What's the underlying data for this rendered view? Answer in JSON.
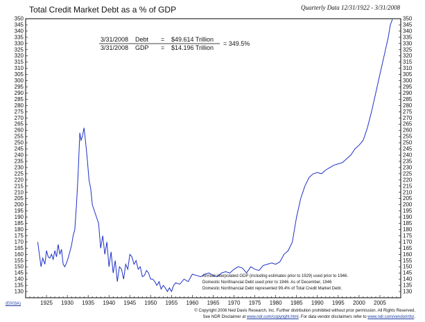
{
  "header": {
    "title": "Total Credit Market Debt as a % of GDP",
    "quarterly": "Quarterly Data 12/31/1922 - 3/31/2008"
  },
  "box": {
    "row1_date": "3/31/2008",
    "row1_label": "Debt",
    "row1_eq": "=",
    "row1_value": "$49.614 Trillion",
    "row2_date": "3/31/2008",
    "row2_label": "GDP",
    "row2_eq": "=",
    "row2_value": "$14.196 Trillion",
    "result": "= 349.5%"
  },
  "annotations": [
    "Annual interpolated GDP (including estimates prior to 1929) used prior to 1946.",
    "Domestic Nonfinancial Debt used prior to 1946. As of December, 1946",
    "Domestic Nonfinancial Debt represented 99.4% of Total Credit Market Debt."
  ],
  "footer": {
    "code": "(E003A)",
    "line1": "© Copyright 2008 Ned Davis Research, Inc. Further distribution prohibited without prior permission. All Rights Reserved.",
    "line2_pre": "See NDR Disclaimer at ",
    "line2_link1": "www.ndr.com/copyright.html",
    "line2_mid": ". For data vendor disclaimers refer to ",
    "line2_link2": "www.ndr.com/vendorinfo/",
    "line2_post": "."
  },
  "colors": {
    "line": "#1c2fc4",
    "frame": "#000000",
    "text": "#111111"
  },
  "chart_data": {
    "type": "line",
    "title": "Total Credit Market Debt as a % of GDP",
    "xlabel": "",
    "ylabel": "",
    "xlim": [
      1920,
      2010
    ],
    "ylim": [
      125,
      350
    ],
    "x_ticks": [
      1925,
      1930,
      1935,
      1940,
      1945,
      1950,
      1955,
      1960,
      1965,
      1970,
      1975,
      1980,
      1985,
      1990,
      1995,
      2000,
      2005
    ],
    "y_ticks": [
      130,
      135,
      140,
      145,
      150,
      155,
      160,
      165,
      170,
      175,
      180,
      185,
      190,
      195,
      200,
      205,
      210,
      215,
      220,
      225,
      230,
      235,
      240,
      245,
      250,
      255,
      260,
      265,
      270,
      275,
      280,
      285,
      290,
      295,
      300,
      305,
      310,
      315,
      320,
      325,
      330,
      335,
      340,
      345,
      350
    ],
    "grid": false,
    "y_axis_both_sides": true,
    "series": [
      {
        "x": [
          1922.9,
          1923.3,
          1923.7,
          1924.1,
          1924.6,
          1925.0,
          1925.4,
          1925.8,
          1926.2,
          1926.6,
          1927.0,
          1927.4,
          1927.8,
          1928.2,
          1928.6,
          1929.0,
          1929.4,
          1929.8,
          1930.2,
          1930.6,
          1931.0,
          1931.4,
          1931.8,
          1932.2,
          1932.6,
          1933.0,
          1933.3,
          1933.6,
          1934.0,
          1934.4,
          1934.8,
          1935.2,
          1935.6,
          1936.0,
          1936.5,
          1937.0,
          1937.5,
          1938.0,
          1938.5,
          1939.0,
          1939.5,
          1940.0,
          1940.5,
          1941.0,
          1941.5,
          1942.0,
          1942.5,
          1943.0,
          1943.5,
          1944.0,
          1944.5,
          1945.0,
          1945.5,
          1946.0,
          1946.5,
          1947.0,
          1947.5,
          1948.0,
          1948.5,
          1949.0,
          1949.5,
          1950.0,
          1950.5,
          1951.0,
          1951.5,
          1952.0,
          1952.5,
          1953.0,
          1953.5,
          1954.0,
          1954.5,
          1955.0,
          1955.5,
          1956.0,
          1957.0,
          1958.0,
          1959.0,
          1960.0,
          1961.0,
          1962.0,
          1963.0,
          1964.0,
          1965.0,
          1966.0,
          1967.0,
          1968.0,
          1969.0,
          1970.0,
          1971.0,
          1972.0,
          1973.0,
          1974.0,
          1975.0,
          1976.0,
          1977.0,
          1978.0,
          1979.0,
          1980.0,
          1981.0,
          1982.0,
          1983.0,
          1984.0,
          1985.0,
          1986.0,
          1987.0,
          1988.0,
          1989.0,
          1990.0,
          1991.0,
          1992.0,
          1993.0,
          1994.0,
          1995.0,
          1996.0,
          1997.0,
          1998.0,
          1999.0,
          2000.0,
          2001.0,
          2002.0,
          2003.0,
          2004.0,
          2005.0,
          2006.0,
          2007.0,
          2007.5,
          2008.0
        ],
        "values": [
          170,
          160,
          150,
          157,
          152,
          163,
          158,
          157,
          160,
          156,
          163,
          158,
          168,
          160,
          164,
          152,
          150,
          153,
          157,
          162,
          167,
          175,
          180,
          200,
          225,
          258,
          252,
          255,
          262,
          250,
          236,
          220,
          213,
          200,
          195,
          190,
          185,
          165,
          175,
          160,
          170,
          150,
          162,
          145,
          155,
          138,
          150,
          148,
          140,
          152,
          148,
          160,
          158,
          152,
          155,
          148,
          150,
          142,
          143,
          147,
          145,
          140,
          140,
          138,
          135,
          138,
          132,
          135,
          133,
          130,
          133,
          130,
          135,
          137,
          136,
          140,
          138,
          144,
          143,
          142,
          144,
          145,
          143,
          142,
          145,
          146,
          145,
          148,
          150,
          149,
          145,
          150,
          148,
          147,
          151,
          152,
          153,
          152,
          154,
          160,
          163,
          170,
          190,
          205,
          215,
          222,
          225,
          226,
          225,
          228,
          230,
          232,
          233,
          234,
          237,
          240,
          245,
          248,
          252,
          262,
          275,
          290,
          305,
          320,
          335,
          345,
          349.5
        ]
      }
    ]
  }
}
